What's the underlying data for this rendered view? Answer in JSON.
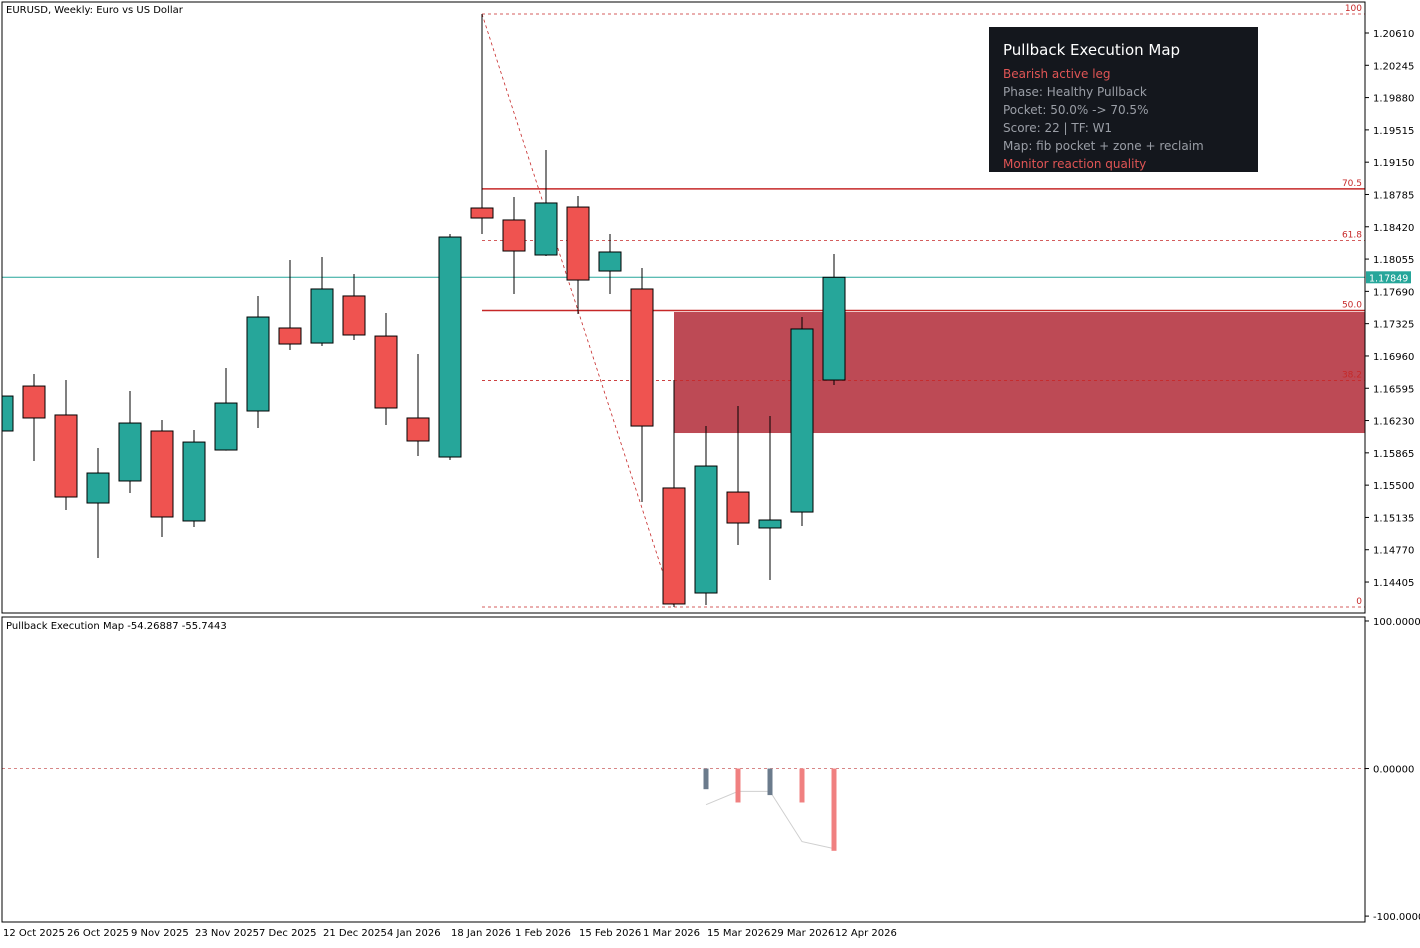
{
  "chart_data": [
    {
      "type": "candlestick",
      "title": "EURUSD, Weekly:  Euro vs US Dollar",
      "categories": [
        "12 Oct 2025",
        null,
        "26 Oct 2025",
        null,
        "9 Nov 2025",
        null,
        "23 Nov 2025",
        null,
        "7 Dec 2025",
        null,
        "21 Dec 2025",
        null,
        "4 Jan 2026",
        null,
        "18 Jan 2026",
        null,
        "1 Feb 2026",
        null,
        "15 Feb 2026",
        null,
        "1 Mar 2026",
        null,
        "15 Mar 2026",
        null,
        "29 Mar 2026",
        null,
        "12 Apr 2026"
      ],
      "open": [
        1.16112,
        1.1662,
        1.16293,
        1.15298,
        1.15547,
        1.16112,
        1.15095,
        1.15897,
        1.16338,
        1.17276,
        1.17106,
        1.17638,
        1.17185,
        1.16259,
        1.15818,
        1.18632,
        1.18497,
        1.18101,
        1.18643,
        1.1792,
        1.17717,
        1.15468,
        1.14281,
        1.15422,
        1.15016,
        1.15196,
        1.16688
      ],
      "high": [
        1.16553,
        1.16756,
        1.16688,
        1.1592,
        1.16564,
        1.16236,
        1.16123,
        1.16824,
        1.17638,
        1.18044,
        1.18078,
        1.17886,
        1.17445,
        1.16982,
        1.18338,
        1.20825,
        1.18756,
        1.19288,
        1.18768,
        1.18338,
        1.17954,
        1.16688,
        1.16168,
        1.16394,
        1.16281,
        1.174,
        1.18112
      ],
      "low": [
        1.161,
        1.15773,
        1.15219,
        1.14676,
        1.15411,
        1.14914,
        1.15027,
        1.1589,
        1.16146,
        1.17027,
        1.17072,
        1.1714,
        1.1618,
        1.15829,
        1.15784,
        1.18338,
        1.1766,
        1.1809,
        1.17434,
        1.1766,
        1.15309,
        1.14123,
        1.14145,
        1.14823,
        1.14428,
        1.15038,
        1.16632
      ],
      "close": [
        1.16507,
        1.16259,
        1.15366,
        1.15637,
        1.16202,
        1.1514,
        1.15987,
        1.16428,
        1.174,
        1.17095,
        1.17717,
        1.17197,
        1.16372,
        1.15999,
        1.18304,
        1.18519,
        1.18146,
        1.18689,
        1.17818,
        1.18135,
        1.16168,
        1.14157,
        1.15716,
        1.15072,
        1.15106,
        1.17265,
        1.17849
      ],
      "up_color": "#26a69a",
      "down_color": "#ef5350",
      "ylim": [
        1.14055,
        1.20949
      ],
      "yticks": [
        {
          "value": 1.2061,
          "label": "1.20610"
        },
        1.20245,
        {
          "value": 1.1988,
          "label": "1.19880"
        },
        1.19515,
        {
          "value": 1.1915,
          "label": "1.19150"
        },
        1.18785,
        {
          "value": 1.1842,
          "label": "1.18420"
        },
        1.18055,
        {
          "value": 1.1769,
          "label": "1.17690"
        },
        1.17325,
        {
          "value": 1.1696,
          "label": "1.16960"
        },
        1.16595,
        {
          "value": 1.1623,
          "label": "1.16230"
        },
        1.15865,
        {
          "value": 1.155,
          "label": "1.15500"
        },
        1.15135,
        {
          "value": 1.1477,
          "label": "1.14770"
        },
        1.14405
      ],
      "last_price": 1.17849,
      "last_price_color": "#26a69a",
      "fib": {
        "high": 1.20825,
        "low": 1.14123,
        "color": "#c62828",
        "levels": [
          100,
          70.5,
          61.8,
          {
            "value": 50,
            "label": "50.0"
          },
          38.2,
          0
        ],
        "line_styles": [
          "dashed",
          "solid",
          "dashed",
          "solid",
          "dashed",
          "dashed"
        ]
      },
      "zone": [
        1.16089,
        1.17457
      ],
      "zone_color": "#bd4a55",
      "panel": {
        "title": "Pullback Execution Map",
        "lines": [
          {
            "text": "Bearish active leg",
            "color": "#e05555"
          },
          {
            "text": "Phase: Healthy Pullback",
            "color": "#9a9ea6"
          },
          {
            "text": "Pocket: 50.0% -> 70.5%",
            "color": "#9a9ea6"
          },
          {
            "text": "Score: 22  |  TF: W1",
            "color": "#9a9ea6"
          },
          {
            "text": "Map: fib pocket + zone + reclaim",
            "color": "#9a9ea6"
          },
          {
            "text": "Monitor reaction quality",
            "color": "#e05555"
          }
        ]
      }
    },
    {
      "type": "bar",
      "title": "Pullback Execution Map",
      "series": [
        {
          "type": "line",
          "color": "#cfcfcf",
          "values": [
            null,
            null,
            null,
            null,
            null,
            null,
            null,
            null,
            null,
            null,
            null,
            null,
            null,
            null,
            null,
            null,
            null,
            null,
            null,
            null,
            null,
            null,
            -24.5,
            -15.5,
            -15.5,
            -49.5,
            -54.26887
          ]
        },
        {
          "type": "bar",
          "values": [
            null,
            null,
            null,
            null,
            null,
            null,
            null,
            null,
            null,
            null,
            null,
            null,
            null,
            null,
            null,
            null,
            null,
            null,
            null,
            null,
            null,
            null,
            -14,
            -23,
            -18,
            -23,
            -55.7443
          ],
          "colors": [
            null,
            null,
            null,
            null,
            null,
            null,
            null,
            null,
            null,
            null,
            null,
            null,
            null,
            null,
            null,
            null,
            null,
            null,
            null,
            null,
            null,
            null,
            "#6b7b8c",
            "#f08080",
            "#6b7b8c",
            "#f08080",
            "#f08080"
          ]
        }
      ],
      "ylim": [
        -104,
        102.7
      ],
      "yticks": [
        {
          "value": 100,
          "label": "100.00000"
        },
        {
          "value": 0,
          "label": "0.00000"
        },
        {
          "value": -100,
          "label": "-100.00000"
        }
      ]
    }
  ]
}
